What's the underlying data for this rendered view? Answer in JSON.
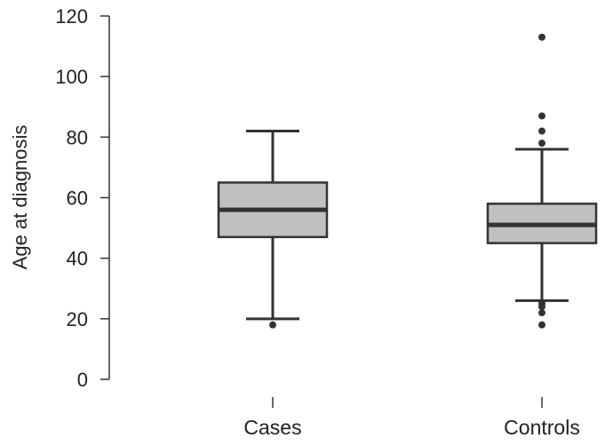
{
  "chart_data": {
    "type": "boxplot",
    "title": "",
    "xlabel": "",
    "ylabel": "Age at diagnosis",
    "ylim": [
      0,
      120
    ],
    "yticks": [
      0,
      20,
      40,
      60,
      80,
      100,
      120
    ],
    "grid": false,
    "legend": "none",
    "box_fill": "#c0c0c0",
    "line_color": "#333333",
    "categories": [
      "Cases",
      "Controls"
    ],
    "series": [
      {
        "category": "Cases",
        "whisker_low": 20,
        "q1": 47,
        "median": 56,
        "q3": 65,
        "whisker_high": 82,
        "outliers": [
          18
        ]
      },
      {
        "category": "Controls",
        "whisker_low": 26,
        "q1": 45,
        "median": 51,
        "q3": 58,
        "whisker_high": 76,
        "outliers": [
          18,
          22,
          24,
          25,
          78,
          82,
          87,
          113
        ]
      }
    ]
  }
}
